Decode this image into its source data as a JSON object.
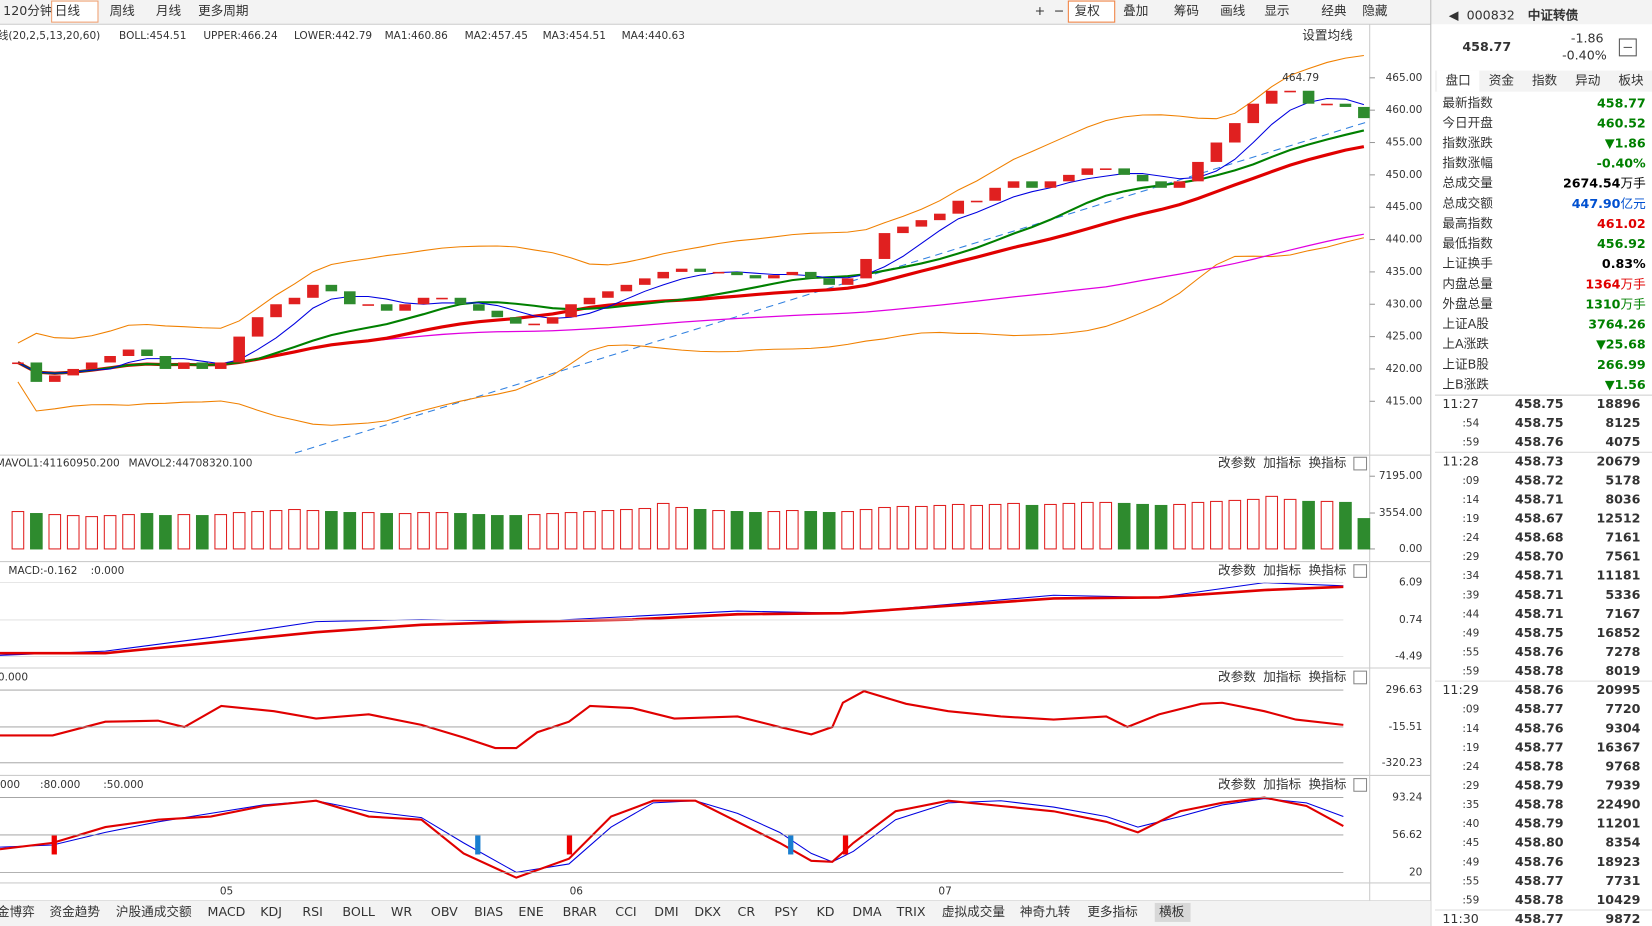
{
  "toolbar": {
    "periods": [
      "120分钟",
      "日线",
      "周线",
      "月线",
      "更多周期"
    ],
    "tools": [
      "复权",
      "叠加",
      "筹码",
      "画线",
      "显示",
      "经典",
      "隐藏"
    ]
  },
  "main": {
    "params": "线(20,2,5,13,20,60)",
    "indicators": [
      {
        "label": "BOLL:454.51",
        "color": "#e00000"
      },
      {
        "label": "UPPER:466.24",
        "color": "#f08000"
      },
      {
        "label": "LOWER:442.79",
        "color": "#f08000"
      },
      {
        "label": "MA1:460.86",
        "color": "#0000e0"
      },
      {
        "label": "MA2:457.45",
        "color": "#008000"
      },
      {
        "label": "MA3:454.51",
        "color": "#e00000"
      },
      {
        "label": "MA4:440.63",
        "color": "#e000e0"
      }
    ],
    "settings": "设置均线",
    "peak_label": "464.79",
    "ylim": [
      407,
      469.7
    ],
    "yticks": [
      {
        "value": 465,
        "label": "465.00"
      },
      {
        "value": 460,
        "label": "460.00"
      },
      {
        "value": 455,
        "label": "455.00"
      },
      {
        "value": 450,
        "label": "450.00"
      },
      {
        "value": 445,
        "label": "445.00"
      },
      {
        "value": 440,
        "label": "440.00"
      },
      {
        "value": 435,
        "label": "435.00"
      },
      {
        "value": 430,
        "label": "430.00"
      },
      {
        "value": 425,
        "label": "425.00"
      },
      {
        "value": 420,
        "label": "420.00"
      },
      {
        "value": 415,
        "label": "415.00"
      }
    ],
    "up_color": "#e02020",
    "down_color": "#2e8b2e",
    "closes": [
      421,
      418,
      419,
      420,
      421,
      422,
      423,
      422,
      420,
      421,
      420,
      421,
      425,
      428,
      430,
      431,
      433,
      432,
      430,
      430,
      429,
      430,
      431,
      431,
      430,
      429,
      428,
      427,
      427,
      428,
      430,
      431,
      432,
      433,
      434,
      435,
      435.5,
      435,
      435,
      434.5,
      434,
      434.5,
      435,
      434,
      433,
      434,
      437,
      441,
      442,
      443,
      444,
      446,
      446,
      448,
      449,
      448,
      449,
      450,
      451,
      451,
      450,
      449,
      448,
      449,
      452,
      455,
      458,
      461,
      463,
      463,
      461,
      461,
      460.5,
      458.77
    ]
  },
  "volume": {
    "header": [
      "MAVOL1:41160950.200",
      "MAVOL2:44708320.100"
    ],
    "ylim": [
      0,
      7925
    ],
    "yticks": [
      {
        "value": 7195,
        "label": "7195.00"
      },
      {
        "value": 3554,
        "label": "3554.00"
      },
      {
        "value": 0,
        "label": "0.00"
      }
    ],
    "values": [
      3700,
      3500,
      3400,
      3300,
      3200,
      3300,
      3400,
      3500,
      3300,
      3400,
      3300,
      3400,
      3600,
      3700,
      3800,
      3900,
      3800,
      3700,
      3600,
      3600,
      3500,
      3500,
      3600,
      3600,
      3500,
      3400,
      3300,
      3300,
      3400,
      3500,
      3600,
      3700,
      3800,
      3900,
      4000,
      4500,
      4100,
      3900,
      3800,
      3700,
      3600,
      3700,
      3800,
      3700,
      3600,
      3700,
      3900,
      4100,
      4200,
      4200,
      4300,
      4400,
      4300,
      4400,
      4500,
      4300,
      4400,
      4500,
      4600,
      4600,
      4500,
      4400,
      4300,
      4400,
      4600,
      4700,
      4800,
      4900,
      5200,
      4900,
      4700,
      4700,
      4600,
      3000
    ]
  },
  "panes": [
    {
      "header": [
        "MACD:-0.162",
        ":0.000"
      ],
      "ylim": [
        -4.49,
        6.09
      ],
      "yticks": [
        6.09,
        0.74,
        -4.49
      ]
    },
    {
      "header": [
        "0.000"
      ],
      "ylim": [
        -320.23,
        296.63
      ],
      "yticks": [
        296.63,
        -15.51,
        -320.23
      ]
    },
    {
      "header": [
        "000",
        ":80.000",
        ":50.000"
      ],
      "ylim": [
        20,
        93.24
      ],
      "yticks": [
        93.24,
        56.62,
        20
      ]
    }
  ],
  "pane_buttons": [
    "改参数",
    "加指标",
    "换指标"
  ],
  "months": [
    "05",
    "06",
    "07"
  ],
  "bottom_tabs": [
    "金博弈",
    "资金趋势",
    "沪股通成交额",
    "MACD",
    "KDJ",
    "RSI",
    "BOLL",
    "WR",
    "OBV",
    "BIAS",
    "ENE",
    "BRAR",
    "CCI",
    "DMI",
    "DKX",
    "CR",
    "PSY",
    "KD",
    "DMA",
    "TRIX",
    "虚拟成交量",
    "神奇九转",
    "更多指标",
    "横板"
  ],
  "quote": {
    "code": "000832",
    "name": "中证转债",
    "price": 458.77,
    "change": -1.86,
    "change_pct": "-0.40%",
    "tabs": [
      "盘口",
      "资金",
      "指数",
      "异动",
      "板块"
    ],
    "stats": [
      {
        "label": "最新指数",
        "value": "458.77",
        "color": "#008000"
      },
      {
        "label": "今日开盘",
        "value": "460.52",
        "color": "#008000"
      },
      {
        "label": "指数涨跌",
        "value": "▼1.86",
        "color": "#008000"
      },
      {
        "label": "指数涨幅",
        "value": "-0.40%",
        "color": "#008000"
      },
      {
        "label": "总成交量",
        "value": "2674.54",
        "unit": "万手",
        "color": "#000000"
      },
      {
        "label": "总成交额",
        "value": "447.90",
        "unit": "亿元",
        "color": "#0050d0"
      },
      {
        "label": "最高指数",
        "value": "461.02",
        "color": "#e00000"
      },
      {
        "label": "最低指数",
        "value": "456.92",
        "color": "#008000"
      },
      {
        "label": "上证换手",
        "value": "0.83%",
        "color": "#000000"
      },
      {
        "label": "内盘总量",
        "value": "1364",
        "unit": "万手",
        "color": "#e00000"
      },
      {
        "label": "外盘总量",
        "value": "1310",
        "unit": "万手",
        "color": "#008000"
      },
      {
        "label": "上证A股",
        "value": "3764.26",
        "color": "#008000"
      },
      {
        "label": "上A涨跌",
        "value": "▼25.68",
        "color": "#008000"
      },
      {
        "label": "上证B股",
        "value": "266.99",
        "color": "#008000"
      },
      {
        "label": "上B涨跌",
        "value": "▼1.56",
        "color": "#008000"
      }
    ],
    "ticks": [
      [
        "11:27",
        "458.75",
        "18896",
        "r"
      ],
      [
        ":54",
        "458.75",
        "8125",
        "r"
      ],
      [
        ":59",
        "458.76",
        "4075",
        "r"
      ],
      [
        "11:28",
        "458.73",
        "20679",
        "g"
      ],
      [
        ":09",
        "458.72",
        "5178",
        "g"
      ],
      [
        ":14",
        "458.71",
        "8036",
        "g"
      ],
      [
        ":19",
        "458.67",
        "12512",
        "g"
      ],
      [
        ":24",
        "458.68",
        "7161",
        "r"
      ],
      [
        ":29",
        "458.70",
        "7561",
        "g"
      ],
      [
        ":34",
        "458.71",
        "11181",
        "r"
      ],
      [
        ":39",
        "458.71",
        "5336",
        "g"
      ],
      [
        ":44",
        "458.71",
        "7167",
        "r"
      ],
      [
        ":49",
        "458.75",
        "16852",
        "r"
      ],
      [
        ":55",
        "458.76",
        "7278",
        "r"
      ],
      [
        ":59",
        "458.78",
        "8019",
        "r"
      ],
      [
        "11:29",
        "458.76",
        "20995",
        "g"
      ],
      [
        ":09",
        "458.77",
        "7720",
        "r"
      ],
      [
        ":14",
        "458.76",
        "9304",
        "g"
      ],
      [
        ":19",
        "458.77",
        "16367",
        "r"
      ],
      [
        ":24",
        "458.78",
        "9768",
        "r"
      ],
      [
        ":29",
        "458.79",
        "7939",
        "r"
      ],
      [
        ":35",
        "458.78",
        "22490",
        "g"
      ],
      [
        ":40",
        "458.79",
        "11201",
        "r"
      ],
      [
        ":45",
        "458.80",
        "8354",
        "r"
      ],
      [
        ":49",
        "458.76",
        "18923",
        "g"
      ],
      [
        ":55",
        "458.77",
        "7731",
        "g"
      ],
      [
        ":59",
        "458.78",
        "10429",
        "r"
      ],
      [
        "11:30",
        "458.77",
        "9872",
        "r"
      ]
    ]
  }
}
